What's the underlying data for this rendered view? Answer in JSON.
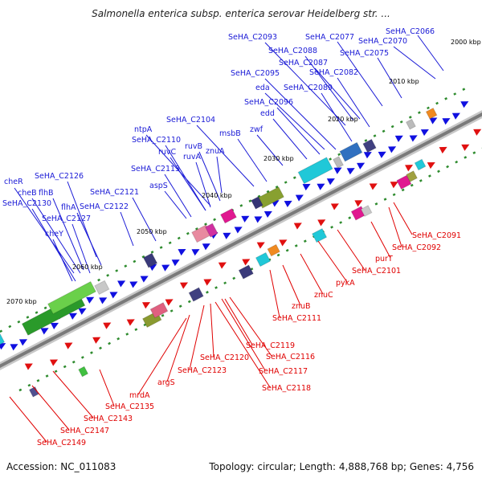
{
  "title": "Salmonella enterica subsp. enterica serovar Heidelberg str. ...",
  "footer": {
    "accession": "Accession: NC_011083",
    "summary": "Topology: circular; Length: 4,888,768 bp; Genes: 4,756"
  },
  "colors": {
    "forward_label": "#1a1ad6",
    "reverse_label": "#e00000",
    "backbone": "#888888",
    "tick": "#2e8b2e"
  },
  "ticks": [
    "2000 kbp",
    "2010 kbp",
    "2020 kbp",
    "2030 kbp",
    "2040 kbp",
    "2050 kbp",
    "2060 kbp",
    "2070 kbp"
  ],
  "forward_labels": [
    "SeHA_C2066",
    "SeHA_C2070",
    "SeHA_C2077",
    "SeHA_C2075",
    "SeHA_C2093",
    "SeHA_C2088",
    "SeHA_C2087",
    "SeHA_C2082",
    "SeHA_C2095",
    "SeHA_C2089",
    "eda",
    "SeHA_C2096",
    "edd",
    "zwf",
    "msbB",
    "SeHA_C2104",
    "ntpA",
    "SeHA_C2110",
    "ruvB",
    "ruvC",
    "ruvA",
    "znuA",
    "SeHA_C2113",
    "aspS",
    "cheR",
    "SeHA_C2126",
    "cheB",
    "flhB",
    "SeHA_C2130",
    "SeHA_C2121",
    "SeHA_C2122",
    "flhA",
    "SeHA_C2127",
    "cheY"
  ],
  "reverse_labels": [
    "SeHA_C2091",
    "SeHA_C2092",
    "purT",
    "SeHA_C2101",
    "pykA",
    "znuC",
    "znuB",
    "SeHA_C2111",
    "SeHA_C2119",
    "SeHA_C2116",
    "SeHA_C2120",
    "SeHA_C2117",
    "SeHA_C2123",
    "SeHA_C2118",
    "argS",
    "mrdA",
    "SeHA_C2135",
    "SeHA_C2143",
    "SeHA_C2147",
    "SeHA_C2149"
  ]
}
